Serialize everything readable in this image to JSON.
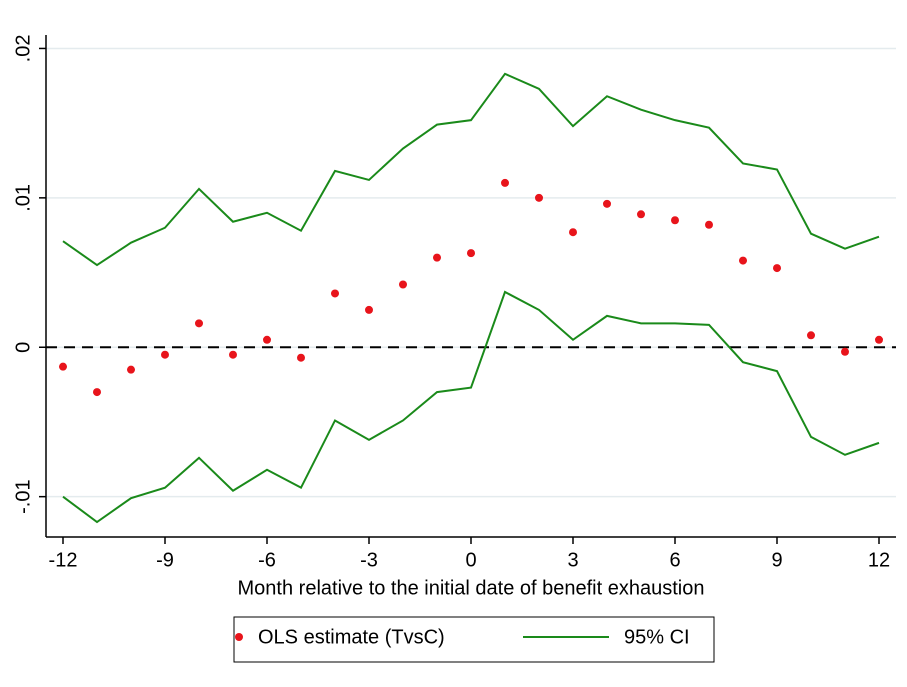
{
  "chart_data": {
    "type": "scatter",
    "xlabel": "Month relative to the initial date of benefit exhaustion",
    "x": [
      -12,
      -11,
      -10,
      -9,
      -8,
      -7,
      -6,
      -5,
      -4,
      -3,
      -2,
      -1,
      0,
      1,
      2,
      3,
      4,
      5,
      6,
      7,
      8,
      9,
      10,
      11,
      12
    ],
    "series": [
      {
        "name": "OLS estimate (TvsC)",
        "color": "#e8141b",
        "type": "scatter",
        "values": [
          -0.0013,
          -0.003,
          -0.0015,
          -0.0005,
          0.0016,
          -0.0005,
          0.0005,
          -0.0007,
          0.0036,
          0.0025,
          0.0042,
          0.006,
          0.0063,
          0.011,
          0.01,
          0.0077,
          0.0096,
          0.0089,
          0.0085,
          0.0082,
          0.0058,
          0.0053,
          0.0008,
          -0.0003,
          0.0005
        ]
      },
      {
        "name": "95% CI",
        "color": "#1a8a1a",
        "type": "line",
        "upper": [
          0.0071,
          0.0055,
          0.007,
          0.008,
          0.0106,
          0.0084,
          0.009,
          0.0078,
          0.0118,
          0.0112,
          0.0133,
          0.0149,
          0.0152,
          0.0183,
          0.0173,
          0.0148,
          0.0168,
          0.0159,
          0.0152,
          0.0147,
          0.0123,
          0.0119,
          0.0076,
          0.0066,
          0.0074
        ],
        "lower": [
          -0.01,
          -0.0117,
          -0.0101,
          -0.0094,
          -0.0074,
          -0.0096,
          -0.0082,
          -0.0094,
          -0.0049,
          -0.0062,
          -0.0049,
          -0.003,
          -0.0027,
          0.0037,
          0.0025,
          0.0005,
          0.0021,
          0.0016,
          0.0016,
          0.0015,
          -0.001,
          -0.0016,
          -0.006,
          -0.0072,
          -0.0064
        ]
      }
    ],
    "hline": 0,
    "xlim": [
      -12.5,
      12.5
    ],
    "xticks": [
      -12,
      -9,
      -6,
      -3,
      0,
      3,
      6,
      9,
      12
    ],
    "ylim": [
      -0.0127,
      0.0209
    ],
    "yticks": [
      {
        "value": -0.01,
        "label": "-.01"
      },
      0,
      {
        "value": 0.01,
        "label": ".01"
      },
      {
        "value": 0.02,
        "label": ".02"
      }
    ],
    "grid": true,
    "legend": "bottom"
  }
}
